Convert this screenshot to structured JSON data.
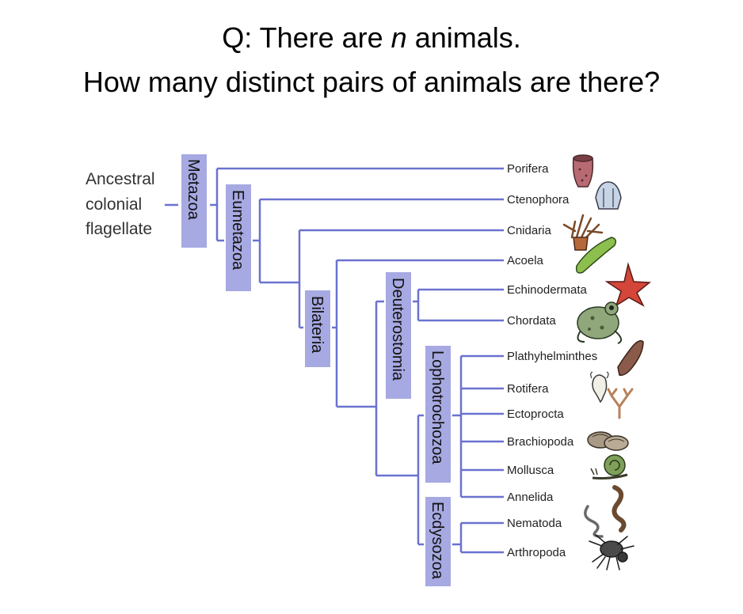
{
  "title": {
    "line1_prefix": "Q: There are ",
    "line1_var": "n",
    "line1_suffix": " animals.",
    "line2": "How many distinct pairs of animals are there?"
  },
  "root": [
    "Ancestral",
    "colonial",
    "flagellate"
  ],
  "clades": [
    "Metazoa",
    "Eumetazoa",
    "Bilateria",
    "Deuterostomia",
    "Lophotrochozoa",
    "Ecdysozoa"
  ],
  "taxa": [
    "Porifera",
    "Ctenophora",
    "Cnidaria",
    "Acoela",
    "Echinodermata",
    "Chordata",
    "Plathyhelminthes",
    "Rotifera",
    "Ectoprocta",
    "Brachiopoda",
    "Mollusca",
    "Annelida",
    "Nematoda",
    "Arthropoda"
  ],
  "icons": [
    "sponge-icon",
    "comb-jelly-icon",
    "anemone-icon",
    "flatworm-icon",
    "starfish-icon",
    "frog-icon",
    "planarian-icon",
    "rotifer-icon",
    "bryozoan-icon",
    "brachiopod-icon",
    "snail-icon",
    "earthworm-icon",
    "roundworm-icon",
    "spider-icon"
  ],
  "colors": {
    "branch": "#6a72cf",
    "clade_box": "#a7a9e2"
  }
}
